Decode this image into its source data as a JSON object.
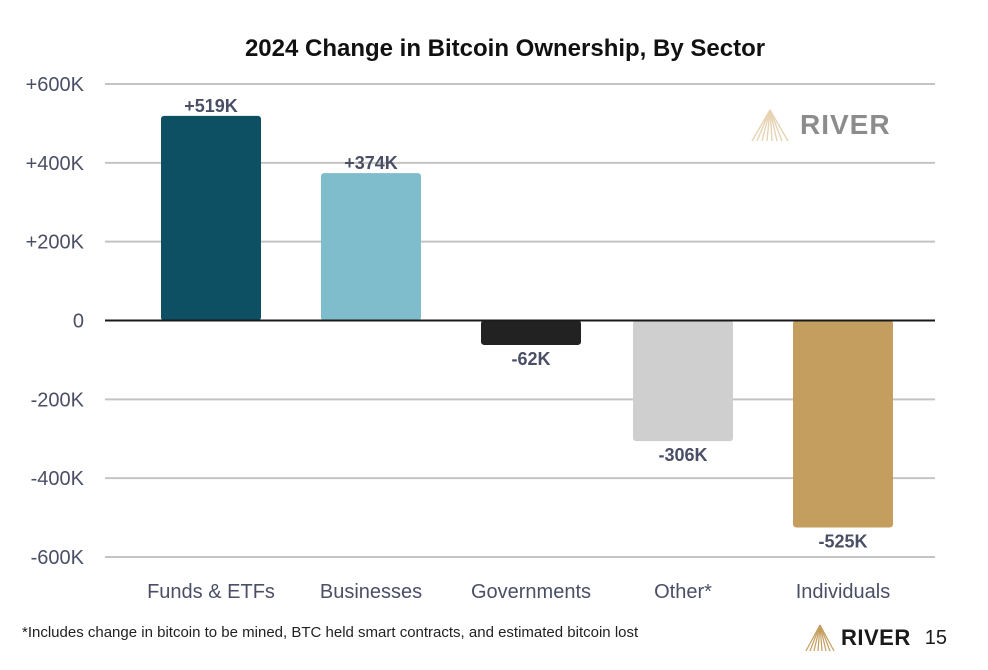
{
  "chart_data": {
    "type": "bar",
    "title": "2024 Change in Bitcoin Ownership, By Sector",
    "xlabel": "",
    "ylabel": "",
    "categories": [
      "Funds & ETFs",
      "Businesses",
      "Governments",
      "Other*",
      "Individuals"
    ],
    "values": [
      519000,
      374000,
      -62000,
      -306000,
      -525000
    ],
    "data_labels": [
      "+519K",
      "+374K",
      "-62K",
      "-306K",
      "-525K"
    ],
    "colors": [
      "#0d4f63",
      "#7fbccc",
      "#222222",
      "#cfcfcf",
      "#c49e5f"
    ],
    "ylim": [
      -600000,
      600000
    ],
    "yticks": [
      600000,
      400000,
      200000,
      0,
      -200000,
      -400000,
      -600000
    ],
    "ytick_labels": [
      "+600K",
      "+400K",
      "+200K",
      "0",
      "-200K",
      "-400K",
      "-600K"
    ],
    "grid": true,
    "legend": "none"
  },
  "watermark": {
    "brand": "RIVER",
    "icon": "river-logo-icon"
  },
  "footer": {
    "footnote": "*Includes change in bitcoin to be mined, BTC held smart contracts, and estimated bitcoin lost",
    "brand": "RIVER",
    "page_number": "15",
    "icon": "river-logo-icon"
  }
}
